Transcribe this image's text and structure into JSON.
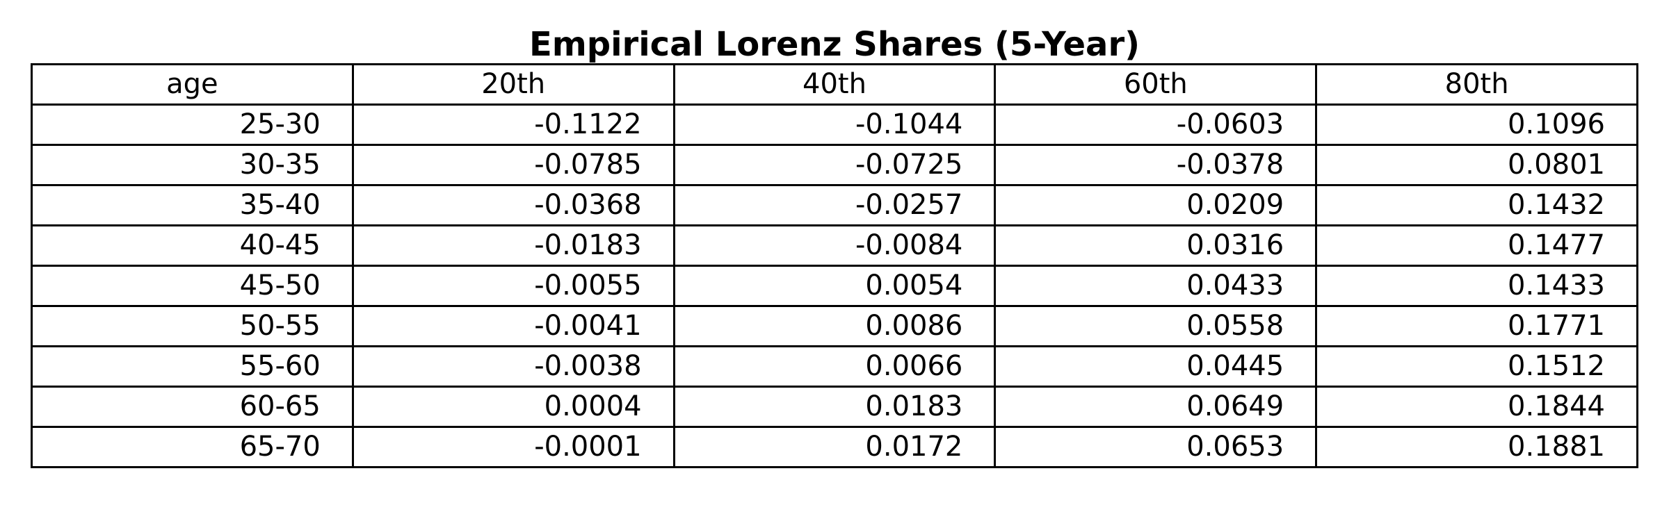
{
  "chart_data": {
    "type": "table",
    "title": "Empirical Lorenz Shares (5-Year)",
    "columns": [
      "age",
      "20th",
      "40th",
      "60th",
      "80th"
    ],
    "rows": [
      [
        "25-30",
        "-0.1122",
        "-0.1044",
        "-0.0603",
        "0.1096"
      ],
      [
        "30-35",
        "-0.0785",
        "-0.0725",
        "-0.0378",
        "0.0801"
      ],
      [
        "35-40",
        "-0.0368",
        "-0.0257",
        "0.0209",
        "0.1432"
      ],
      [
        "40-45",
        "-0.0183",
        "-0.0084",
        "0.0316",
        "0.1477"
      ],
      [
        "45-50",
        "-0.0055",
        "0.0054",
        "0.0433",
        "0.1433"
      ],
      [
        "50-55",
        "-0.0041",
        "0.0086",
        "0.0558",
        "0.1771"
      ],
      [
        "55-60",
        "-0.0038",
        "0.0066",
        "0.0445",
        "0.1512"
      ],
      [
        "60-65",
        "0.0004",
        "0.0183",
        "0.0649",
        "0.1844"
      ],
      [
        "65-70",
        "-0.0001",
        "0.0172",
        "0.0653",
        "0.1881"
      ]
    ]
  }
}
